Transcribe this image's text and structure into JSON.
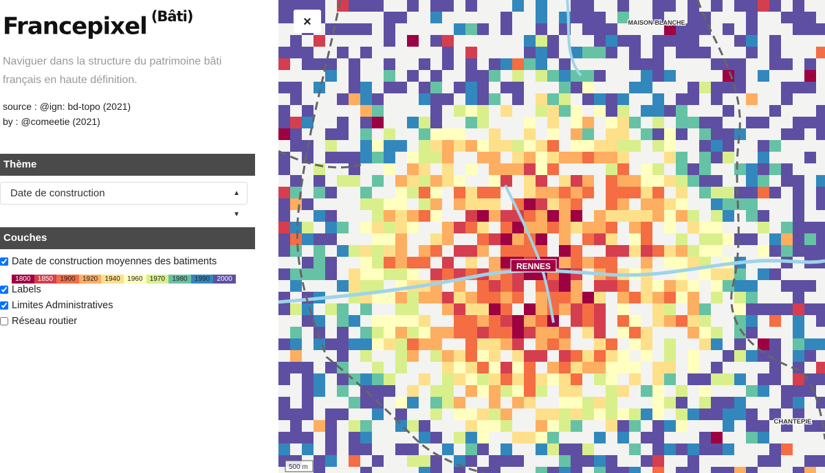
{
  "header": {
    "title": "Francepixel",
    "superscript": "(Bâti)",
    "description": "Naviguer dans la structure du patrimoine bâti français en haute définition.",
    "source": "source : @ign: bd-topo (2021)",
    "author": "by : @comeetie (2021)"
  },
  "theme": {
    "heading": "Thème",
    "selected": "Date de construction"
  },
  "layers": {
    "heading": "Couches",
    "items": [
      {
        "label": "Date de construction moyennes des batiments",
        "checked": true
      },
      {
        "label": "Labels",
        "checked": true
      },
      {
        "label": "Limites Administratives",
        "checked": true
      },
      {
        "label": "Réseau routier",
        "checked": false
      }
    ]
  },
  "legend": {
    "items": [
      {
        "label": "1800",
        "color": "#9e0142"
      },
      {
        "label": "1850",
        "color": "#d53e4f"
      },
      {
        "label": "1900",
        "color": "#f46d43"
      },
      {
        "label": "1920",
        "color": "#fdae61"
      },
      {
        "label": "1940",
        "color": "#fee08b"
      },
      {
        "label": "1960",
        "color": "#ffffbf"
      },
      {
        "label": "1970",
        "color": "#d9ef8b"
      },
      {
        "label": "1980",
        "color": "#66c2a5"
      },
      {
        "label": "1990",
        "color": "#3288bd"
      },
      {
        "label": "2000",
        "color": "#5e4fa2"
      }
    ]
  },
  "map": {
    "close": "×",
    "places": [
      "RENNES",
      "MAISON-BLANCHE",
      "CHANTEPIE"
    ],
    "scale": "500 m"
  }
}
